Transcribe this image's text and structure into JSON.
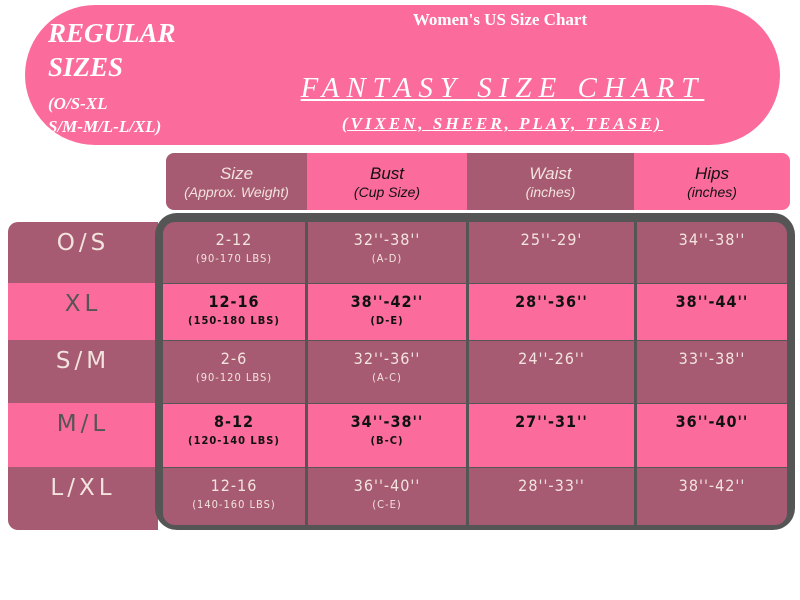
{
  "banner": {
    "regular_line1": "REGULAR",
    "regular_line2": "SIZES",
    "regular_range1": "(O/S-XL",
    "regular_range2": "S/M-M/L-L/XL)",
    "subtitle": "Women's US Size Chart",
    "title": "FANTASY SIZE CHART",
    "collection": "(VIXEN, SHEER, PLAY, TEASE)"
  },
  "colors": {
    "pink": "#fb6b9c",
    "mauve": "#a65b72",
    "frame": "#555555"
  },
  "headers": [
    {
      "main": "Size",
      "sub": "(Approx. Weight)"
    },
    {
      "main": "Bust",
      "sub": "(Cup Size)"
    },
    {
      "main": "Waist",
      "sub": "(inches)"
    },
    {
      "main": "Hips",
      "sub": "(inches)"
    }
  ],
  "rows": [
    {
      "label": "O/S",
      "size": "2-12",
      "weight": "(90-170 LBS)",
      "bust": "32''-38''",
      "cup": "(A-D)",
      "waist": "25''-29'",
      "hips": "34''-38''"
    },
    {
      "label": "XL",
      "size": "12-16",
      "weight": "(150-180 LBS)",
      "bust": "38''-42''",
      "cup": "(D-E)",
      "waist": "28''-36''",
      "hips": "38''-44''"
    },
    {
      "label": "S/M",
      "size": "2-6",
      "weight": "(90-120 LBS)",
      "bust": "32''-36''",
      "cup": "(A-C)",
      "waist": "24''-26''",
      "hips": "33''-38''"
    },
    {
      "label": "M/L",
      "size": "8-12",
      "weight": "(120-140 LBS)",
      "bust": "34''-38''",
      "cup": "(B-C)",
      "waist": "27''-31''",
      "hips": "36''-40''"
    },
    {
      "label": "L/XL",
      "size": "12-16",
      "weight": "(140-160 LBS)",
      "bust": "36''-40''",
      "cup": "(C-E)",
      "waist": "28''-33''",
      "hips": "38''-42''"
    }
  ]
}
